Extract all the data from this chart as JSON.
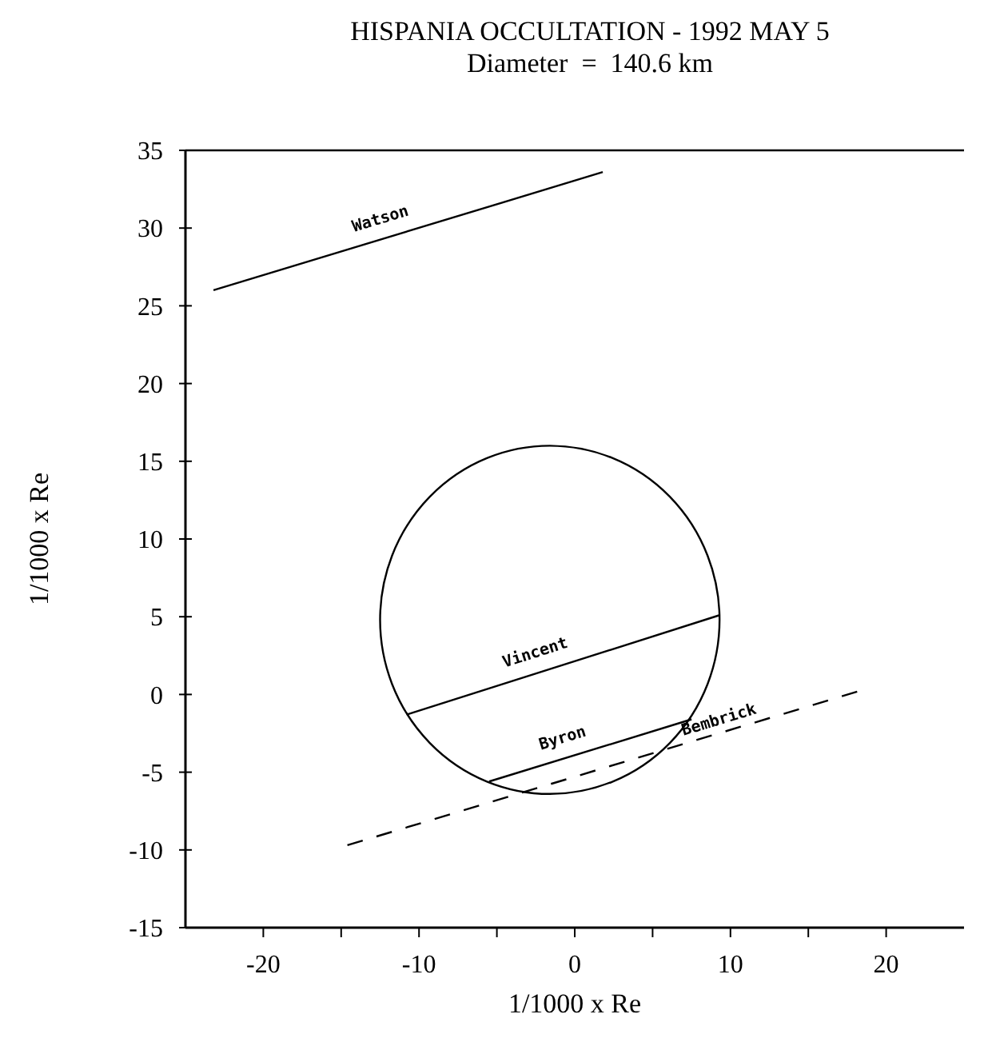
{
  "chart_data": {
    "type": "line",
    "title": "HISPANIA OCCULTATION - 1992 MAY 5",
    "subtitle": "Diameter  =  140.6 km",
    "xlabel": "1/1000 x Re",
    "ylabel": "1/1000 x Re",
    "xlim": [
      -25,
      25
    ],
    "ylim": [
      -15,
      35
    ],
    "xticks": [
      -20,
      {
        "value": -15,
        "label": null
      },
      -10,
      {
        "value": -5,
        "label": null
      },
      0,
      {
        "value": 5,
        "label": null
      },
      10,
      {
        "value": 15,
        "label": null
      },
      20
    ],
    "yticks": [
      -15,
      -10,
      -5,
      0,
      5,
      10,
      15,
      20,
      25,
      30,
      35
    ],
    "grid": false,
    "legend": false,
    "marker": "none",
    "series": [
      {
        "name": "Watson",
        "color": "#000000",
        "x": [
          -23.2,
          1.8
        ],
        "values": [
          26.0,
          33.6
        ]
      },
      {
        "name": "Vincent",
        "color": "#000000",
        "x": [
          -10.8,
          9.3
        ],
        "values": [
          -1.3,
          5.1
        ]
      },
      {
        "name": "Byron",
        "color": "#000000",
        "x": [
          -5.5,
          7.5
        ],
        "values": [
          -5.6,
          -1.6
        ]
      },
      {
        "name": "Bembrick",
        "color": "#000000",
        "line_style": "dashed",
        "x": [
          -14.6,
          18.2
        ],
        "values": [
          -9.7,
          0.2
        ]
      }
    ]
  }
}
